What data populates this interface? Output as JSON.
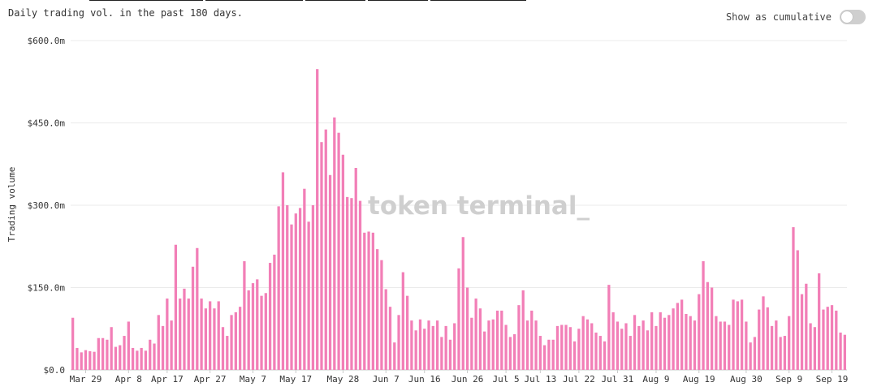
{
  "header": {
    "subtitle": "Daily trading vol. in the past 180 days.",
    "toggle_label": "Show as cumulative"
  },
  "watermark": "token terminal_",
  "colors": {
    "bar": "#f27fb7",
    "grid": "#ebebeb",
    "axis": "#c9c9c9"
  },
  "chart_data": {
    "type": "bar",
    "ylabel": "Trading volume",
    "ylim": [
      0,
      600
    ],
    "yticks": [
      0,
      150,
      300,
      450,
      600
    ],
    "ytick_labels": [
      "$0.0",
      "$150.0m",
      "$300.0m",
      "$450.0m",
      "$600.0m"
    ],
    "xtick_labels": [
      "Mar 29",
      "Apr 8",
      "Apr 17",
      "Apr 27",
      "May 7",
      "May 17",
      "May 28",
      "Jun 7",
      "Jun 16",
      "Jun 26",
      "Jul 5",
      "Jul 13",
      "Jul 22",
      "Jul 31",
      "Aug 9",
      "Aug 19",
      "Aug 30",
      "Sep 9",
      "Sep 19"
    ],
    "xtick_index": [
      3,
      13,
      22,
      32,
      42,
      52,
      63,
      73,
      82,
      92,
      101,
      109,
      118,
      127,
      136,
      146,
      157,
      167,
      177
    ],
    "grid": true,
    "values": [
      95,
      40,
      32,
      36,
      34,
      33,
      58,
      58,
      55,
      78,
      42,
      45,
      62,
      88,
      40,
      35,
      40,
      35,
      55,
      48,
      100,
      80,
      130,
      90,
      228,
      130,
      148,
      130,
      188,
      222,
      130,
      112,
      125,
      112,
      125,
      78,
      62,
      100,
      105,
      115,
      198,
      145,
      158,
      165,
      135,
      140,
      195,
      210,
      298,
      360,
      300,
      265,
      285,
      295,
      330,
      270,
      300,
      548,
      415,
      438,
      355,
      460,
      432,
      392,
      315,
      313,
      368,
      308,
      250,
      252,
      250,
      220,
      200,
      147,
      115,
      50,
      100,
      178,
      135,
      90,
      72,
      92,
      75,
      90,
      80,
      90,
      60,
      80,
      55,
      85,
      185,
      242,
      150,
      95,
      130,
      112,
      70,
      90,
      92,
      108,
      108,
      82,
      60,
      65,
      118,
      145,
      90,
      108,
      90,
      62,
      45,
      55,
      55,
      80,
      82,
      82,
      78,
      52,
      75,
      98,
      92,
      85,
      68,
      62,
      52,
      155,
      105,
      88,
      75,
      85,
      62,
      100,
      80,
      90,
      72,
      105,
      80,
      105,
      95,
      100,
      112,
      122,
      128,
      102,
      98,
      90,
      138,
      198,
      160,
      150,
      98,
      88,
      88,
      82,
      128,
      125,
      128,
      88,
      50,
      60,
      110,
      134,
      114,
      80,
      90,
      60,
      62,
      98,
      260,
      218,
      138,
      157,
      85,
      78,
      176,
      110,
      115,
      118,
      108,
      68,
      64
    ]
  }
}
